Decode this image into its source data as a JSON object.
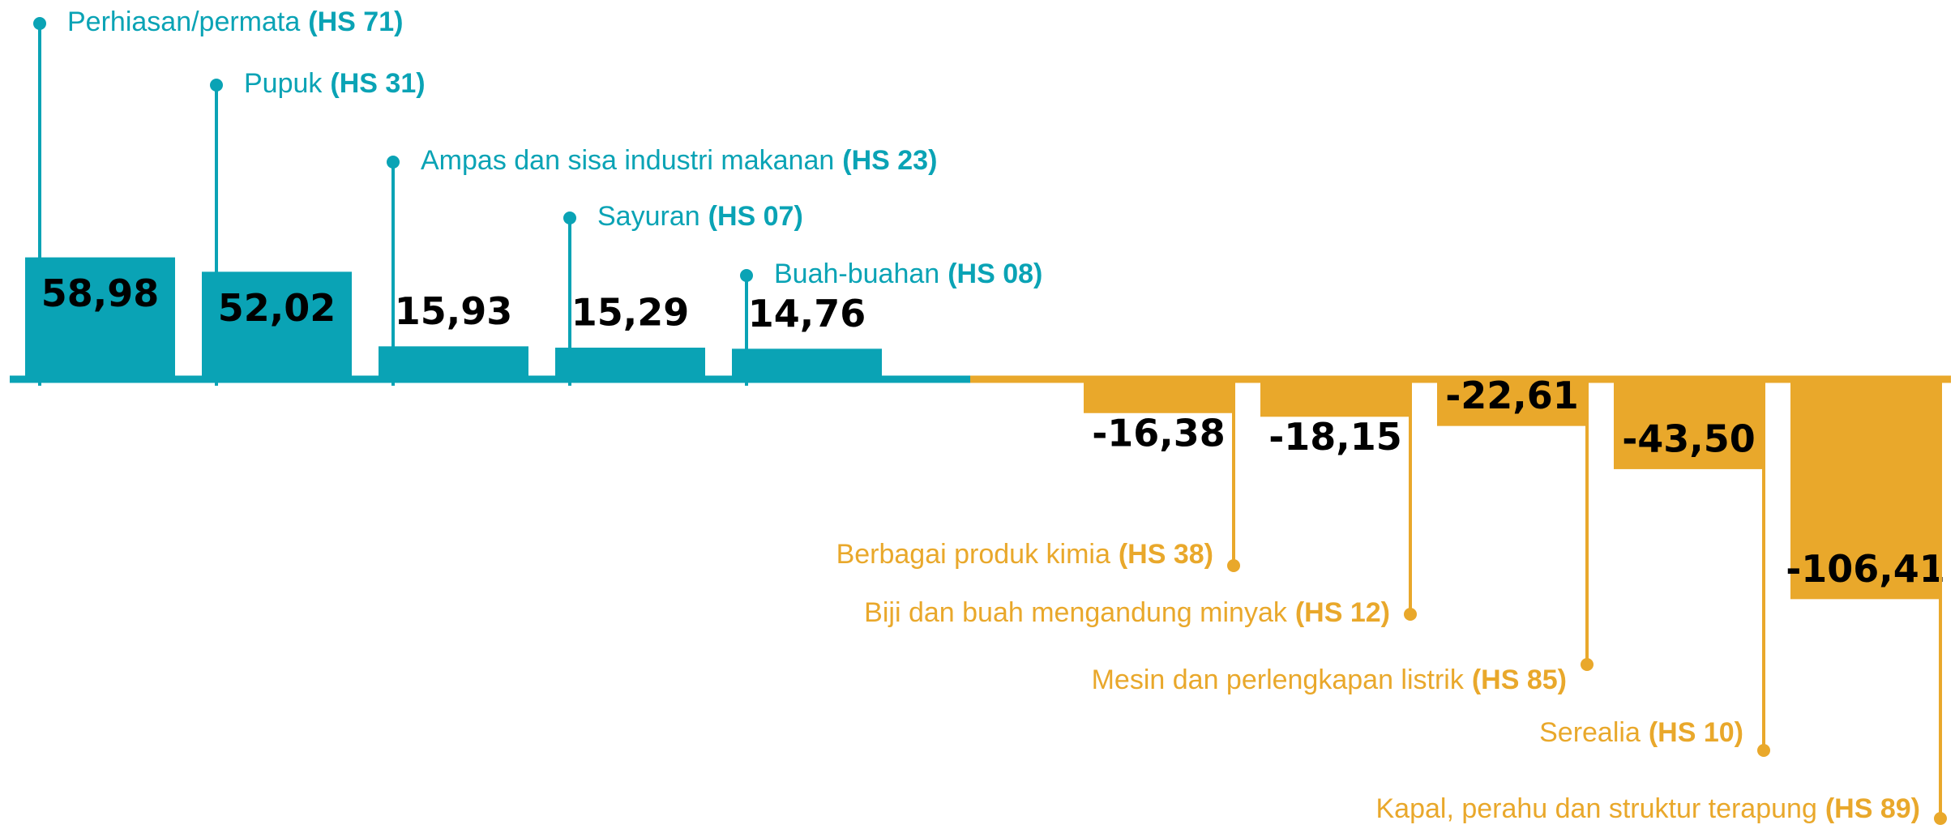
{
  "chart_data": {
    "type": "bar",
    "categories": [
      "Perhiasan/permata",
      "Pupuk",
      "Ampas dan sisa industri makanan",
      "Sayuran",
      "Buah-buahan",
      "Berbagai produk kimia",
      "Biji dan buah mengandung minyak",
      "Mesin dan perlengkapan listrik",
      "Serealia",
      "Kapal, perahu dan struktur terapung"
    ],
    "codes": [
      "(HS 71)",
      "(HS 31)",
      "(HS 23)",
      "(HS 07)",
      "(HS 08)",
      "(HS 38)",
      "(HS 12)",
      "(HS 85)",
      "(HS 10)",
      "(HS 89)"
    ],
    "values": [
      58.98,
      52.02,
      15.93,
      15.29,
      14.76,
      -16.38,
      -18.15,
      -22.61,
      -43.5,
      -106.41
    ],
    "value_labels": [
      "58,98",
      "52,02",
      "15,93",
      "15,29",
      "14,76",
      "-16,38",
      "-18,15",
      "-22,61",
      "-43,50",
      "-106,41"
    ],
    "colors": {
      "positive": "#0aa3b5",
      "negative": "#e9a82b"
    }
  }
}
